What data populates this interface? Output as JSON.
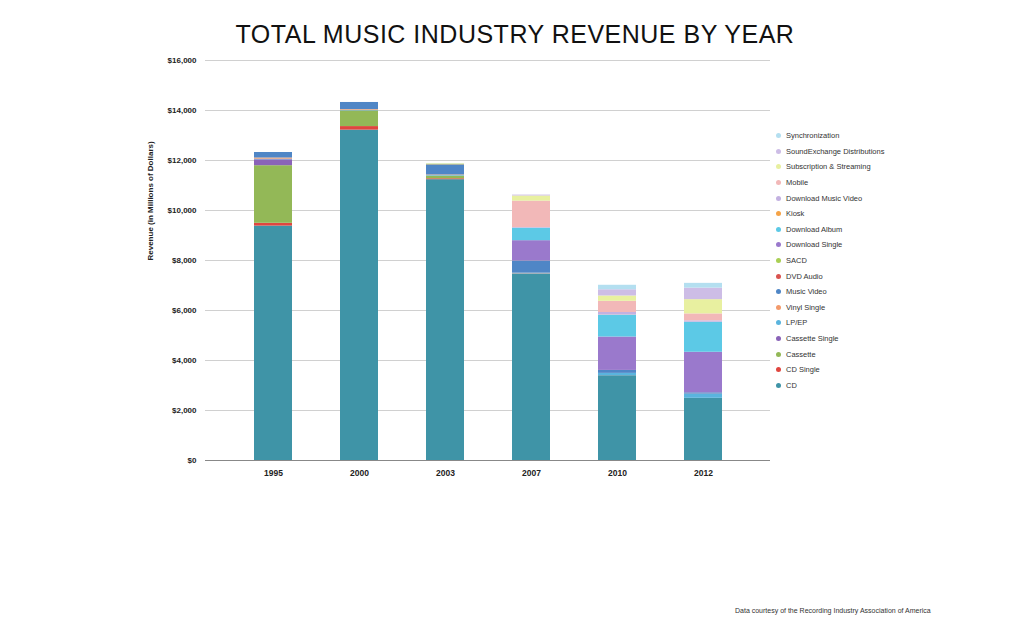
{
  "chart_data": {
    "type": "bar",
    "stacked": true,
    "title": "TOTAL MUSIC INDUSTRY REVENUE BY YEAR",
    "ylabel": "Revenue (in Millions of Dollars)",
    "caption": "Data courtesy of the Recording Industry Association of America",
    "categories": [
      "1995",
      "2000",
      "2003",
      "2007",
      "2010",
      "2012"
    ],
    "ylim": [
      0,
      16000
    ],
    "yticks": [
      {
        "value": 0,
        "label": "$0"
      },
      {
        "value": 2000,
        "label": "$2,000"
      },
      {
        "value": 4000,
        "label": "$4,000"
      },
      {
        "value": 6000,
        "label": "$6,000"
      },
      {
        "value": 8000,
        "label": "$8,000"
      },
      {
        "value": 10000,
        "label": "$10,000"
      },
      {
        "value": 12000,
        "label": "$12,000"
      },
      {
        "value": 14000,
        "label": "$14,000"
      },
      {
        "value": 16000,
        "label": "$16,000"
      }
    ],
    "grid": true,
    "legend": "right",
    "series": [
      {
        "name": "CD",
        "color": "#3f94a7",
        "values": [
          9377,
          13215,
          11233,
          7452,
          3390,
          2486
        ]
      },
      {
        "name": "CD Single",
        "color": "#e0463f",
        "values": [
          111,
          142,
          36,
          12,
          2,
          1
        ]
      },
      {
        "name": "Cassette",
        "color": "#93b857",
        "values": [
          2304,
          626,
          108,
          3,
          0,
          0
        ]
      },
      {
        "name": "Cassette Single",
        "color": "#8a63b8",
        "values": [
          236,
          4,
          0,
          0,
          0,
          0
        ]
      },
      {
        "name": "LP/EP",
        "color": "#5ab4de",
        "values": [
          25,
          27,
          22,
          23,
          89,
          163
        ]
      },
      {
        "name": "Vinyl Single",
        "color": "#f39a6b",
        "values": [
          47,
          26,
          22,
          4,
          4,
          5
        ]
      },
      {
        "name": "Music Video",
        "color": "#4f86c6",
        "values": [
          220,
          281,
          400,
          484,
          118,
          52
        ]
      },
      {
        "name": "DVD Audio",
        "color": "#d9534f",
        "values": [
          0,
          0,
          8,
          3,
          0,
          0
        ]
      },
      {
        "name": "SACD",
        "color": "#a9cf54",
        "values": [
          0,
          0,
          26,
          1,
          0,
          0
        ]
      },
      {
        "name": "Download Single",
        "color": "#9a79cc",
        "values": [
          0,
          0,
          0,
          811,
          1336,
          1623
        ]
      },
      {
        "name": "Download Album",
        "color": "#5cc9e6",
        "values": [
          0,
          0,
          0,
          499,
          872,
          1200
        ]
      },
      {
        "name": "Kiosk",
        "color": "#f5a347",
        "values": [
          0,
          0,
          0,
          3,
          6,
          2
        ]
      },
      {
        "name": "Download Music Video",
        "color": "#c3b1e1",
        "values": [
          0,
          0,
          0,
          24,
          103,
          54
        ]
      },
      {
        "name": "Mobile",
        "color": "#f2b8b8",
        "values": [
          0,
          0,
          0,
          1056,
          448,
          278
        ]
      },
      {
        "name": "Subscription & Streaming",
        "color": "#e8f0a0",
        "values": [
          0,
          0,
          0,
          206,
          212,
          570
        ]
      },
      {
        "name": "SoundExchange Distributions",
        "color": "#cdbde6",
        "values": [
          0,
          0,
          0,
          36,
          249,
          462
        ]
      },
      {
        "name": "Synchronization",
        "color": "#b4dff0",
        "values": [
          0,
          0,
          0,
          0,
          180,
          190
        ]
      }
    ]
  }
}
